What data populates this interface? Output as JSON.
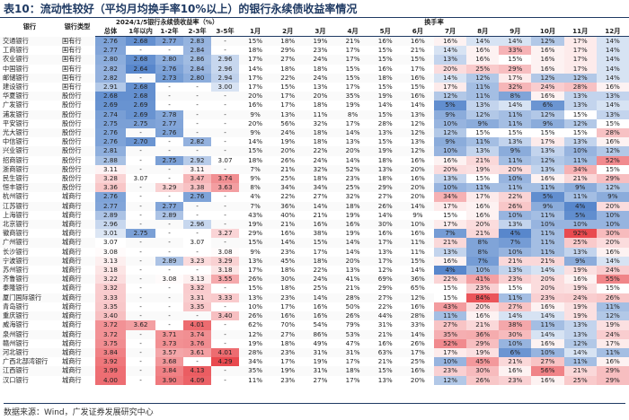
{
  "title": "表10：流动性较好（平均月均换手率10%以上）的银行永续债收益率情况",
  "table": {
    "group_headers": [
      "2024/1/5银行永续债收益率（%）",
      "换手率"
    ],
    "columns": [
      "银行",
      "银行类型",
      "总体",
      "1年以内",
      "1-2年",
      "2-3年",
      "3-5年",
      "1月",
      "2月",
      "3月",
      "4月",
      "5月",
      "6月",
      "7月",
      "8月",
      "9月",
      "10月",
      "11月",
      "12月"
    ],
    "rows": [
      [
        "交通银行",
        "国有行",
        "2.76",
        "2.68",
        "2.77",
        "2.83",
        "-",
        "15%",
        "18%",
        "19%",
        "21%",
        "16%",
        "16%",
        "16%",
        "14%",
        "14%",
        "12%",
        "17%",
        "14%"
      ],
      [
        "工商银行",
        "国有行",
        "2.77",
        "-",
        "-",
        "2.84",
        "-",
        "18%",
        "29%",
        "23%",
        "17%",
        "15%",
        "21%",
        "14%",
        "16%",
        "33%",
        "16%",
        "17%",
        "14%"
      ],
      [
        "农业银行",
        "国有行",
        "2.80",
        "2.68",
        "2.80",
        "2.86",
        "2.96",
        "17%",
        "27%",
        "24%",
        "17%",
        "15%",
        "15%",
        "13%",
        "16%",
        "15%",
        "16%",
        "17%",
        "14%"
      ],
      [
        "中国银行",
        "国有行",
        "2.82",
        "2.64",
        "2.76",
        "2.84",
        "2.96",
        "14%",
        "18%",
        "18%",
        "15%",
        "16%",
        "17%",
        "20%",
        "25%",
        "29%",
        "16%",
        "17%",
        "14%"
      ],
      [
        "邮储银行",
        "国有行",
        "2.82",
        "-",
        "2.73",
        "2.80",
        "2.94",
        "17%",
        "22%",
        "24%",
        "15%",
        "18%",
        "16%",
        "14%",
        "12%",
        "17%",
        "12%",
        "12%",
        "14%"
      ],
      [
        "建设银行",
        "国有行",
        "2.91",
        "2.68",
        "-",
        "-",
        "3.00",
        "17%",
        "15%",
        "13%",
        "17%",
        "15%",
        "15%",
        "17%",
        "11%",
        "32%",
        "24%",
        "28%",
        "16%"
      ],
      [
        "华夏银行",
        "股份行",
        "2.68",
        "2.68",
        "-",
        "-",
        "-",
        "20%",
        "17%",
        "20%",
        "35%",
        "19%",
        "16%",
        "12%",
        "11%",
        "8%",
        "16%",
        "13%",
        "13%"
      ],
      [
        "广发银行",
        "股份行",
        "2.69",
        "2.69",
        "-",
        "-",
        "-",
        "16%",
        "17%",
        "18%",
        "19%",
        "14%",
        "14%",
        "5%",
        "13%",
        "14%",
        "6%",
        "13%",
        "14%"
      ],
      [
        "浦发银行",
        "股份行",
        "2.74",
        "2.69",
        "2.78",
        "-",
        "-",
        "9%",
        "13%",
        "11%",
        "8%",
        "15%",
        "13%",
        "9%",
        "12%",
        "11%",
        "12%",
        "15%",
        "13%"
      ],
      [
        "平安银行",
        "股份行",
        "2.75",
        "2.75",
        "2.77",
        "-",
        "-",
        "20%",
        "56%",
        "32%",
        "17%",
        "28%",
        "12%",
        "10%",
        "9%",
        "11%",
        "9%",
        "12%",
        "15%"
      ],
      [
        "光大银行",
        "股份行",
        "2.76",
        "-",
        "2.76",
        "-",
        "-",
        "9%",
        "24%",
        "18%",
        "14%",
        "13%",
        "12%",
        "12%",
        "15%",
        "15%",
        "15%",
        "15%",
        "28%"
      ],
      [
        "中信银行",
        "股份行",
        "2.76",
        "2.70",
        "-",
        "2.82",
        "-",
        "14%",
        "19%",
        "18%",
        "13%",
        "15%",
        "13%",
        "9%",
        "11%",
        "13%",
        "17%",
        "13%",
        "16%"
      ],
      [
        "兴业银行",
        "股份行",
        "2.81",
        "-",
        "-",
        "-",
        "-",
        "15%",
        "20%",
        "22%",
        "20%",
        "19%",
        "12%",
        "10%",
        "13%",
        "9%",
        "13%",
        "10%",
        "12%"
      ],
      [
        "招商银行",
        "股份行",
        "2.88",
        "-",
        "2.75",
        "2.92",
        "3.07",
        "18%",
        "26%",
        "24%",
        "14%",
        "18%",
        "16%",
        "16%",
        "21%",
        "11%",
        "12%",
        "11%",
        "52%"
      ],
      [
        "浙商银行",
        "股份行",
        "3.11",
        "-",
        "-",
        "3.11",
        "-",
        "7%",
        "21%",
        "32%",
        "52%",
        "13%",
        "20%",
        "20%",
        "19%",
        "20%",
        "13%",
        "34%",
        "15%"
      ],
      [
        "民生银行",
        "股份行",
        "3.28",
        "3.07",
        "-",
        "3.47",
        "3.74",
        "9%",
        "25%",
        "18%",
        "23%",
        "18%",
        "16%",
        "13%",
        "15%",
        "10%",
        "16%",
        "21%",
        "29%"
      ],
      [
        "恒丰银行",
        "股份行",
        "3.36",
        "-",
        "3.29",
        "3.38",
        "3.63",
        "8%",
        "34%",
        "34%",
        "25%",
        "29%",
        "20%",
        "10%",
        "11%",
        "11%",
        "11%",
        "9%",
        "12%"
      ],
      [
        "杭州银行",
        "城商行",
        "2.76",
        "-",
        "-",
        "2.76",
        "-",
        "4%",
        "22%",
        "27%",
        "32%",
        "27%",
        "20%",
        "34%",
        "17%",
        "22%",
        "5%",
        "11%",
        "9%"
      ],
      [
        "江苏银行",
        "城商行",
        "2.77",
        "-",
        "2.77",
        "-",
        "-",
        "7%",
        "36%",
        "14%",
        "18%",
        "26%",
        "14%",
        "17%",
        "16%",
        "26%",
        "9%",
        "4%",
        "20%"
      ],
      [
        "上海银行",
        "城商行",
        "2.89",
        "-",
        "2.89",
        "-",
        "-",
        "43%",
        "40%",
        "21%",
        "19%",
        "14%",
        "9%",
        "15%",
        "16%",
        "10%",
        "11%",
        "5%",
        "10%"
      ],
      [
        "北京银行",
        "城商行",
        "2.96",
        "-",
        "-",
        "2.96",
        "-",
        "19%",
        "21%",
        "16%",
        "16%",
        "30%",
        "10%",
        "17%",
        "20%",
        "13%",
        "10%",
        "10%",
        "10%"
      ],
      [
        "徽商银行",
        "城商行",
        "3.01",
        "2.75",
        "-",
        "-",
        "3.27",
        "29%",
        "16%",
        "38%",
        "19%",
        "16%",
        "16%",
        "7%",
        "21%",
        "4%",
        "11%",
        "92%",
        "30%"
      ],
      [
        "广州银行",
        "城商行",
        "3.07",
        "-",
        "-",
        "3.07",
        "-",
        "15%",
        "14%",
        "15%",
        "14%",
        "17%",
        "11%",
        "21%",
        "8%",
        "7%",
        "11%",
        "25%",
        "20%"
      ],
      [
        "长沙银行",
        "城商行",
        "3.08",
        "-",
        "-",
        "-",
        "3.08",
        "9%",
        "23%",
        "17%",
        "14%",
        "13%",
        "11%",
        "13%",
        "8%",
        "10%",
        "11%",
        "13%",
        "16%"
      ],
      [
        "宁波银行",
        "城商行",
        "3.13",
        "-",
        "2.89",
        "3.23",
        "3.29",
        "13%",
        "45%",
        "18%",
        "20%",
        "17%",
        "15%",
        "16%",
        "7%",
        "21%",
        "21%",
        "9%",
        "14%"
      ],
      [
        "苏州银行",
        "城商行",
        "3.18",
        "-",
        "-",
        "-",
        "3.18",
        "17%",
        "18%",
        "22%",
        "13%",
        "12%",
        "14%",
        "4%",
        "10%",
        "13%",
        "14%",
        "19%",
        "24%"
      ],
      [
        "齐鲁银行",
        "城商行",
        "3.22",
        "-",
        "3.08",
        "3.13",
        "3.55",
        "26%",
        "30%",
        "24%",
        "41%",
        "69%",
        "36%",
        "22%",
        "41%",
        "23%",
        "20%",
        "16%",
        "55%"
      ],
      [
        "泰隆银行",
        "城商行",
        "3.32",
        "-",
        "-",
        "3.32",
        "-",
        "15%",
        "18%",
        "25%",
        "21%",
        "29%",
        "65%",
        "15%",
        "23%",
        "15%",
        "20%",
        "19%",
        "15%"
      ],
      [
        "厦门国际银行",
        "城商行",
        "3.33",
        "-",
        "-",
        "3.31",
        "3.33",
        "13%",
        "23%",
        "14%",
        "28%",
        "27%",
        "12%",
        "15%",
        "84%",
        "11%",
        "23%",
        "24%",
        "26%"
      ],
      [
        "青岛银行",
        "城商行",
        "3.35",
        "-",
        "-",
        "3.35",
        "-",
        "10%",
        "17%",
        "16%",
        "50%",
        "22%",
        "16%",
        "43%",
        "20%",
        "27%",
        "16%",
        "19%",
        "11%"
      ],
      [
        "重庆银行",
        "城商行",
        "3.40",
        "-",
        "-",
        "-",
        "3.40",
        "26%",
        "16%",
        "16%",
        "26%",
        "44%",
        "28%",
        "11%",
        "16%",
        "14%",
        "14%",
        "19%",
        "12%"
      ],
      [
        "威海银行",
        "城商行",
        "3.72",
        "3.62",
        "-",
        "4.01",
        "-",
        "62%",
        "70%",
        "54%",
        "79%",
        "31%",
        "33%",
        "27%",
        "21%",
        "38%",
        "11%",
        "13%",
        "19%"
      ],
      [
        "泉州银行",
        "城商行",
        "3.72",
        "-",
        "3.71",
        "3.74",
        "-",
        "12%",
        "27%",
        "86%",
        "53%",
        "21%",
        "14%",
        "35%",
        "36%",
        "30%",
        "14%",
        "13%",
        "24%"
      ],
      [
        "赣州银行",
        "城商行",
        "3.75",
        "-",
        "3.73",
        "3.76",
        "-",
        "19%",
        "18%",
        "49%",
        "47%",
        "16%",
        "26%",
        "52%",
        "29%",
        "10%",
        "16%",
        "12%",
        "17%"
      ],
      [
        "河北银行",
        "城商行",
        "3.84",
        "-",
        "3.57",
        "3.61",
        "4.01",
        "28%",
        "23%",
        "31%",
        "31%",
        "63%",
        "17%",
        "17%",
        "19%",
        "6%",
        "10%",
        "14%",
        "11%"
      ],
      [
        "广西北部湾银行",
        "城商行",
        "3.92",
        "-",
        "3.68",
        "-",
        "4.29",
        "34%",
        "17%",
        "19%",
        "17%",
        "21%",
        "25%",
        "10%",
        "45%",
        "21%",
        "27%",
        "11%",
        "16%"
      ],
      [
        "江西银行",
        "城商行",
        "3.99",
        "-",
        "3.84",
        "4.13",
        "-",
        "35%",
        "19%",
        "31%",
        "18%",
        "15%",
        "16%",
        "23%",
        "30%",
        "16%",
        "56%",
        "21%",
        "29%"
      ],
      [
        "汉口银行",
        "城商行",
        "4.00",
        "-",
        "3.90",
        "4.09",
        "-",
        "11%",
        "23%",
        "27%",
        "17%",
        "13%",
        "20%",
        "12%",
        "26%",
        "23%",
        "16%",
        "25%",
        "29%"
      ]
    ]
  },
  "source": "数据来源：Wind，广发证券发展研究中心"
}
